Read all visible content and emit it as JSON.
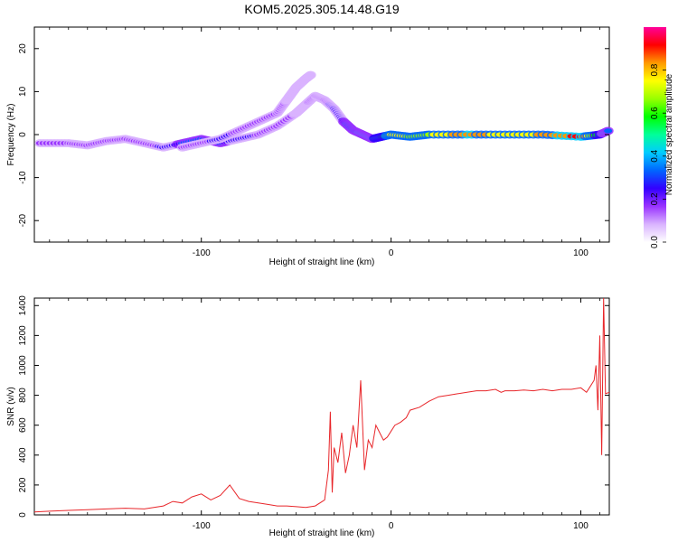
{
  "title": "KOM5.2025.305.14.48.G19",
  "chart_data": [
    {
      "type": "heatmap",
      "xlabel": "Height of straight line (km)",
      "ylabel": "Frequency (Hz)",
      "xlim": [
        -188,
        115
      ],
      "ylim": [
        -25,
        25
      ],
      "xticks": [
        -100,
        0,
        100
      ],
      "yticks": [
        -20,
        -10,
        0,
        10,
        20
      ],
      "colorbar": {
        "label": "Normalized spectral amplitude",
        "range": [
          0,
          1
        ],
        "ticks": [
          0.0,
          0.2,
          0.4,
          0.6,
          0.8
        ],
        "colors": [
          "#ffffff",
          "#d9b3ff",
          "#9933ff",
          "#3300ff",
          "#0066ff",
          "#00ccff",
          "#00ff99",
          "#00ff00",
          "#99ff00",
          "#ffff00",
          "#ff9900",
          "#ff0000",
          "#ff0099"
        ]
      },
      "traces": [
        {
          "name_hidden": true,
          "x": [
            -185,
            -170,
            -160,
            -150,
            -140,
            -130,
            -120,
            -110,
            -100,
            -90,
            -80,
            -70,
            -60,
            -50,
            -45,
            -40,
            -35,
            -30,
            -25,
            -20,
            -15,
            -10,
            -5,
            0,
            10,
            20,
            40,
            60,
            80,
            100,
            110,
            115
          ],
          "y": [
            -2,
            -2,
            -2.5,
            -1.5,
            -1,
            -2,
            -3,
            -2,
            -1,
            -2,
            -1,
            0,
            2,
            5,
            7,
            9,
            8,
            6,
            3,
            1,
            0,
            -1,
            -0.5,
            0,
            -0.5,
            0,
            0,
            0,
            0,
            -0.5,
            0,
            1
          ],
          "amplitude": [
            0.15,
            0.15,
            0.18,
            0.2,
            0.2,
            0.18,
            0.22,
            0.3,
            0.35,
            0.3,
            0.25,
            0.2,
            0.15,
            0.12,
            0.12,
            0.15,
            0.2,
            0.22,
            0.28,
            0.35,
            0.4,
            0.45,
            0.55,
            0.75,
            0.7,
            0.7,
            0.85,
            0.75,
            0.8,
            0.9,
            0.5,
            0.3
          ]
        },
        {
          "name_hidden": true,
          "x": [
            -110,
            -100,
            -90,
            -80,
            -70,
            -60,
            -55,
            -50,
            -45,
            -42
          ],
          "y": [
            -3,
            -2,
            -1,
            1,
            3,
            5,
            8,
            11,
            13,
            14
          ],
          "amplitude": [
            0.2,
            0.2,
            0.22,
            0.2,
            0.15,
            0.15,
            0.12,
            0.12,
            0.12,
            0.12
          ]
        }
      ]
    },
    {
      "type": "line",
      "xlabel": "Height of straight line (km)",
      "ylabel": "SNR (v/v)",
      "xlim": [
        -188,
        115
      ],
      "ylim": [
        0,
        1450
      ],
      "xticks": [
        -100,
        0,
        100
      ],
      "yticks": [
        0,
        200,
        400,
        600,
        800,
        1000,
        1200,
        1400
      ],
      "color": "#e8262a",
      "series": [
        {
          "x": [
            -188,
            -180,
            -170,
            -160,
            -150,
            -140,
            -130,
            -120,
            -115,
            -110,
            -105,
            -100,
            -95,
            -90,
            -85,
            -80,
            -75,
            -70,
            -65,
            -60,
            -55,
            -50,
            -45,
            -40,
            -35,
            -33,
            -32,
            -31,
            -30,
            -28,
            -26,
            -24,
            -22,
            -20,
            -18,
            -16,
            -14,
            -12,
            -10,
            -8,
            -6,
            -4,
            -2,
            0,
            2,
            5,
            8,
            10,
            15,
            20,
            25,
            30,
            35,
            40,
            45,
            50,
            55,
            58,
            60,
            65,
            70,
            75,
            80,
            85,
            90,
            95,
            100,
            103,
            105,
            107,
            108,
            109,
            110,
            111,
            112,
            113,
            115
          ],
          "y": [
            20,
            25,
            30,
            35,
            40,
            45,
            40,
            60,
            90,
            80,
            120,
            140,
            100,
            130,
            200,
            110,
            90,
            80,
            70,
            60,
            60,
            55,
            50,
            60,
            100,
            300,
            690,
            150,
            450,
            350,
            550,
            280,
            400,
            600,
            450,
            900,
            300,
            500,
            450,
            600,
            550,
            500,
            520,
            560,
            600,
            620,
            650,
            700,
            720,
            760,
            790,
            800,
            810,
            820,
            830,
            830,
            840,
            820,
            830,
            830,
            835,
            830,
            840,
            830,
            840,
            840,
            850,
            820,
            860,
            900,
            1000,
            700,
            1200,
            400,
            1450,
            810,
            820
          ]
        }
      ]
    }
  ]
}
